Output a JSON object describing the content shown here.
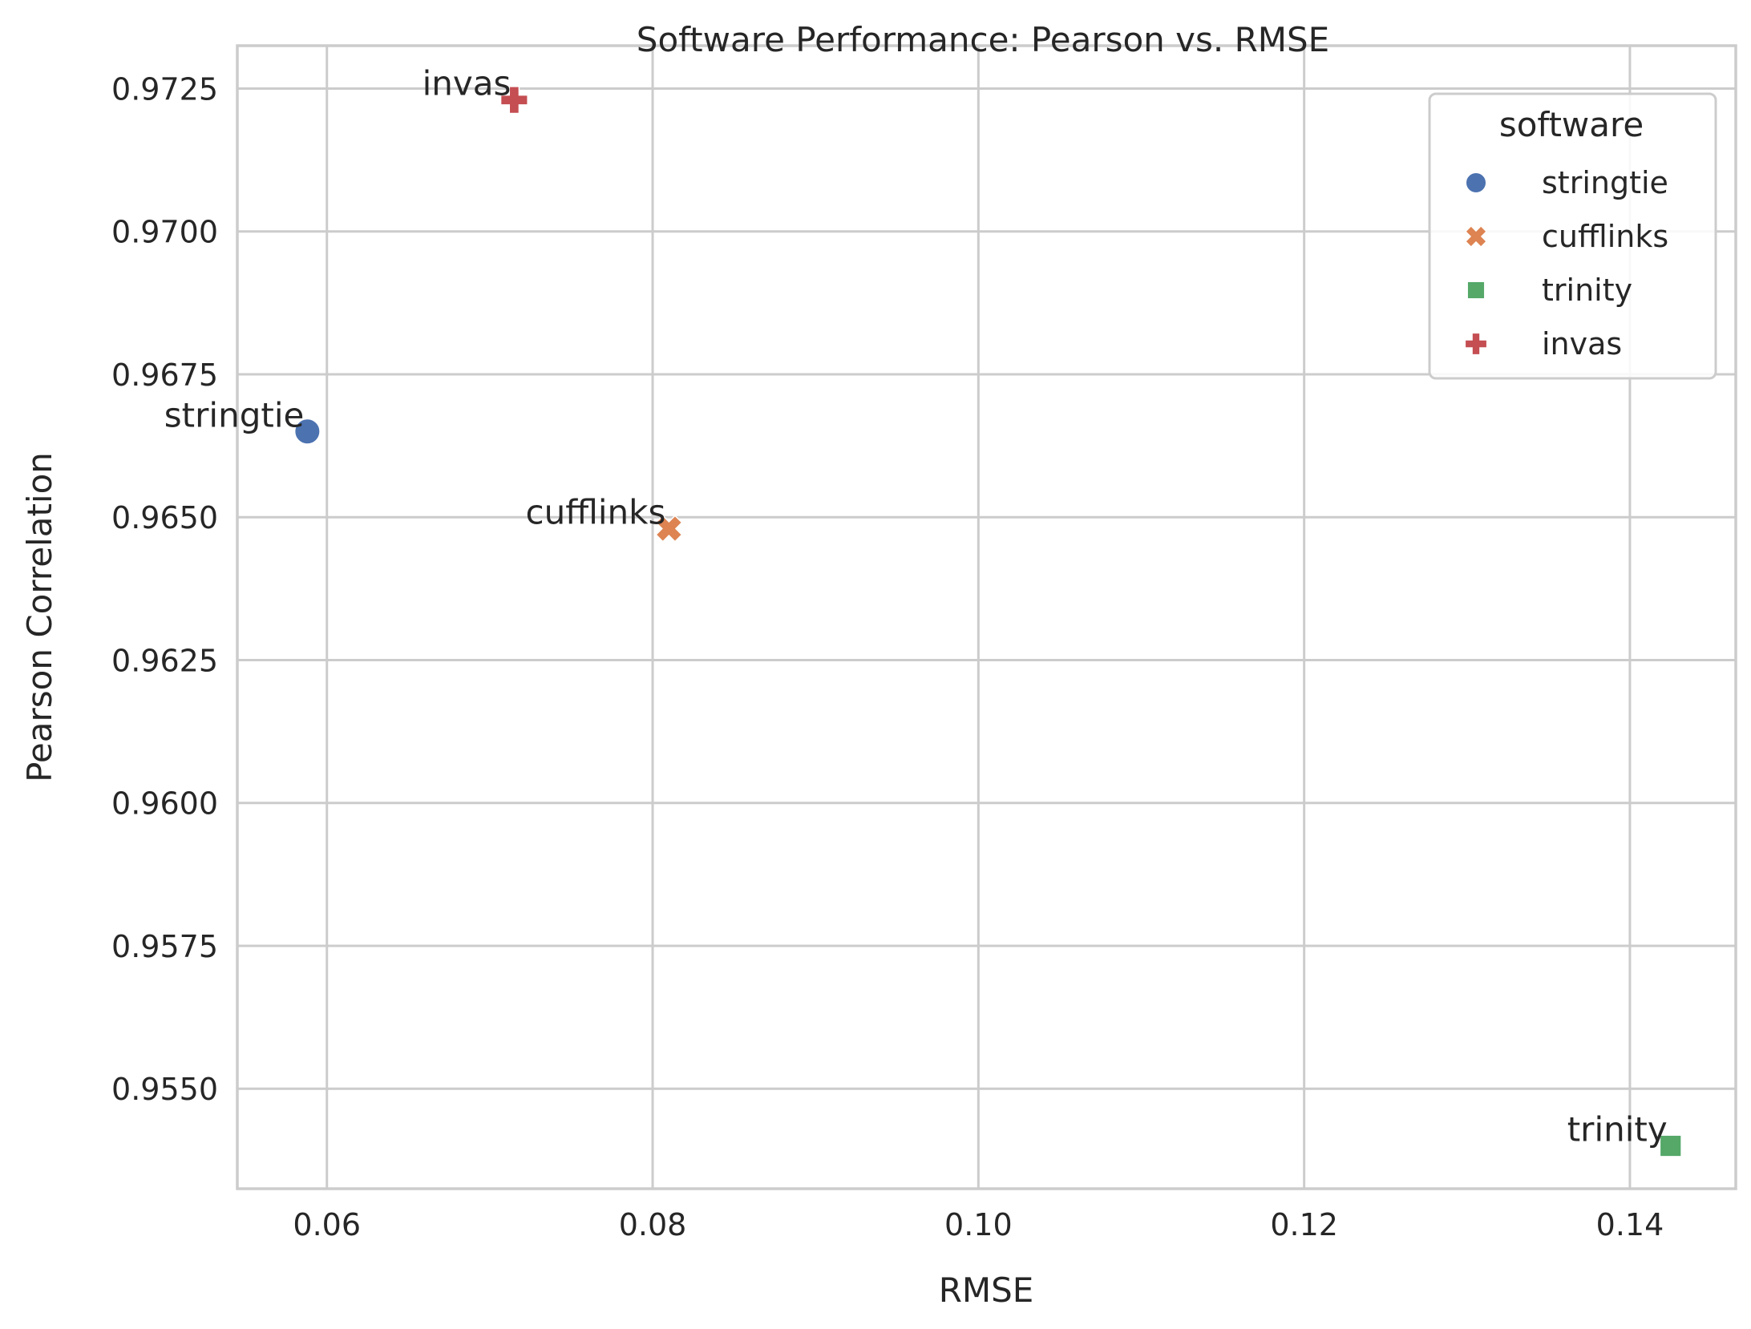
{
  "chart_data": {
    "type": "scatter",
    "title": "Software Performance: Pearson vs. RMSE",
    "xlabel": "RMSE",
    "ylabel": "Pearson Correlation",
    "xlim": [
      0.0545,
      0.1465
    ],
    "ylim": [
      0.95325,
      0.97325
    ],
    "xticks": [
      0.06,
      0.08,
      0.1,
      0.12,
      0.14
    ],
    "xtick_labels": [
      "0.06",
      "0.08",
      "0.10",
      "0.12",
      "0.14"
    ],
    "yticks": [
      0.955,
      0.9575,
      0.96,
      0.9625,
      0.965,
      0.9675,
      0.97,
      0.9725
    ],
    "ytick_labels": [
      "0.9550",
      "0.9575",
      "0.9600",
      "0.9625",
      "0.9650",
      "0.9675",
      "0.9700",
      "0.9725"
    ],
    "grid": true,
    "legend": {
      "title": "software",
      "position": "top-right"
    },
    "series": [
      {
        "name": "stringtie",
        "marker": "circle",
        "color": "#4c72b0",
        "x": 0.0588,
        "y": 0.9665,
        "label": "stringtie"
      },
      {
        "name": "cufflinks",
        "marker": "x",
        "color": "#dd8452",
        "x": 0.081,
        "y": 0.9648,
        "label": "cufflinks"
      },
      {
        "name": "trinity",
        "marker": "square",
        "color": "#55a868",
        "x": 0.1425,
        "y": 0.954,
        "label": "trinity"
      },
      {
        "name": "invas",
        "marker": "plus",
        "color": "#c44e52",
        "x": 0.0715,
        "y": 0.9723,
        "label": "invas"
      }
    ]
  }
}
